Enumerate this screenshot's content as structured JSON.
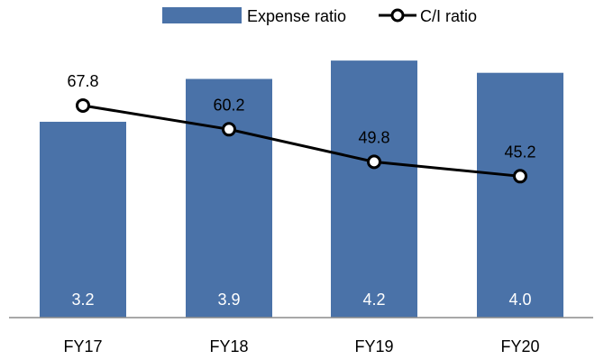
{
  "chart_data": {
    "type": "bar",
    "categories": [
      "FY17",
      "FY18",
      "FY19",
      "FY20"
    ],
    "series": [
      {
        "name": "Expense ratio",
        "type": "bar",
        "values": [
          3.2,
          3.9,
          4.2,
          4.0
        ],
        "value_labels": [
          "3.2",
          "3.9",
          "4.2",
          "4.0"
        ],
        "color": "#4A72A8"
      },
      {
        "name": "C/I ratio",
        "type": "line",
        "values": [
          67.8,
          60.2,
          49.8,
          45.2
        ],
        "value_labels": [
          "67.8",
          "60.2",
          "49.8",
          "45.2"
        ],
        "color": "#000000",
        "marker": "open-circle"
      }
    ],
    "legend_position": "top-center",
    "grid": false,
    "bar_ylim": [
      0,
      4.6
    ],
    "line_ylim": [
      0,
      90
    ]
  }
}
